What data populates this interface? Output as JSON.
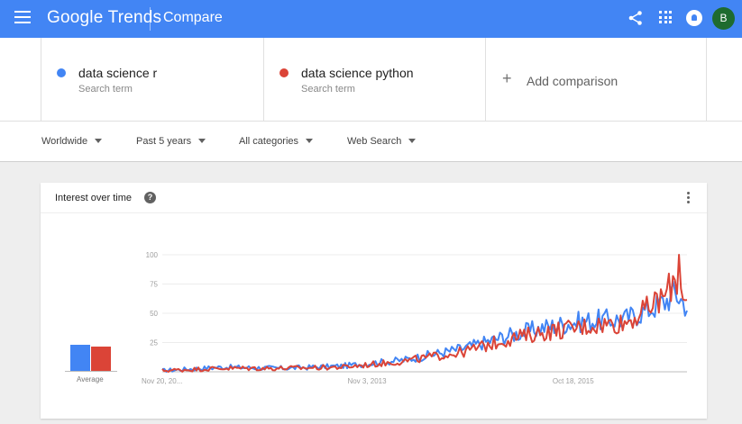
{
  "header": {
    "brand_part1": "Google",
    "brand_part2": "Trends",
    "page_title": "Compare",
    "avatar_initial": "B",
    "bar_color": "#4285f4",
    "icons": [
      "menu-icon",
      "share-icon",
      "apps-icon",
      "notifications-icon"
    ]
  },
  "terms": [
    {
      "name": "data science r",
      "subtitle": "Search term",
      "color": "#4285f4"
    },
    {
      "name": "data science python",
      "subtitle": "Search term",
      "color": "#db4437"
    }
  ],
  "add_comparison": {
    "label": "Add comparison",
    "icon": "plus-icon"
  },
  "filters": [
    {
      "label": "Worldwide"
    },
    {
      "label": "Past 5 years"
    },
    {
      "label": "All categories"
    },
    {
      "label": "Web Search"
    }
  ],
  "card": {
    "title": "Interest over time",
    "help_glyph": "?",
    "average_label": "Average"
  },
  "chart_data": {
    "type": "line",
    "title": "",
    "xlabel": "",
    "ylabel": "",
    "ylim": [
      0,
      100
    ],
    "yticks": [
      25,
      50,
      75,
      100
    ],
    "xtick_labels": [
      "Nov 20, 20...",
      "Nov 3, 2013",
      "Oct 18, 2015"
    ],
    "xtick_index": [
      0,
      102,
      204
    ],
    "grid": true,
    "weeks": 262,
    "anchors_x": [
      0,
      30,
      60,
      90,
      102,
      120,
      150,
      170,
      190,
      204,
      215,
      230,
      240,
      250,
      255,
      261
    ],
    "averages": [
      {
        "name": "data science r",
        "value": 22
      },
      {
        "name": "data science python",
        "value": 21
      }
    ],
    "series": [
      {
        "name": "data science r",
        "color": "#4285f4",
        "anchors_y": [
          1,
          4,
          3,
          5,
          7,
          10,
          20,
          30,
          38,
          42,
          44,
          45,
          52,
          60,
          68,
          56
        ]
      },
      {
        "name": "data science python",
        "color": "#db4437",
        "anchors_y": [
          1,
          3,
          3,
          4,
          6,
          9,
          17,
          27,
          34,
          37,
          40,
          42,
          52,
          65,
          80,
          65
        ]
      }
    ]
  }
}
